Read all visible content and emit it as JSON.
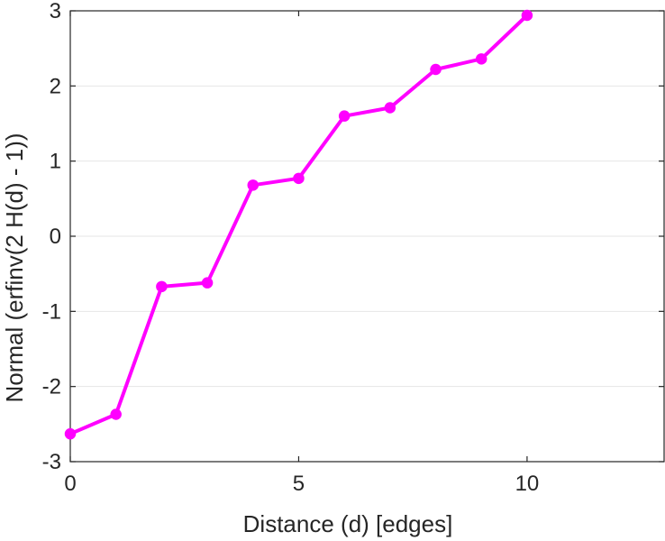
{
  "chart_data": {
    "type": "line",
    "title": "",
    "xlabel": "Distance (d) [edges]",
    "ylabel": "Normal (erfinv(2 H(d) - 1))",
    "xlim": [
      0,
      13
    ],
    "ylim": [
      -3,
      3
    ],
    "x_ticks": [
      0,
      5,
      10
    ],
    "x_tick_labels": [
      "0",
      "5",
      "10"
    ],
    "y_ticks": [
      -3,
      -2,
      -1,
      0,
      1,
      2,
      3
    ],
    "y_tick_labels": [
      "-3",
      "-2",
      "-1",
      "0",
      "1",
      "2",
      "3"
    ],
    "grid": "horizontal",
    "legend": "none",
    "series": [
      {
        "color": "#ff00ff",
        "marker": "circle",
        "x": [
          0,
          1,
          2,
          3,
          4,
          5,
          6,
          7,
          8,
          9,
          10
        ],
        "y": [
          -2.63,
          -2.37,
          -0.67,
          -0.62,
          0.68,
          0.77,
          1.6,
          1.71,
          2.22,
          2.36,
          2.94
        ]
      }
    ]
  }
}
